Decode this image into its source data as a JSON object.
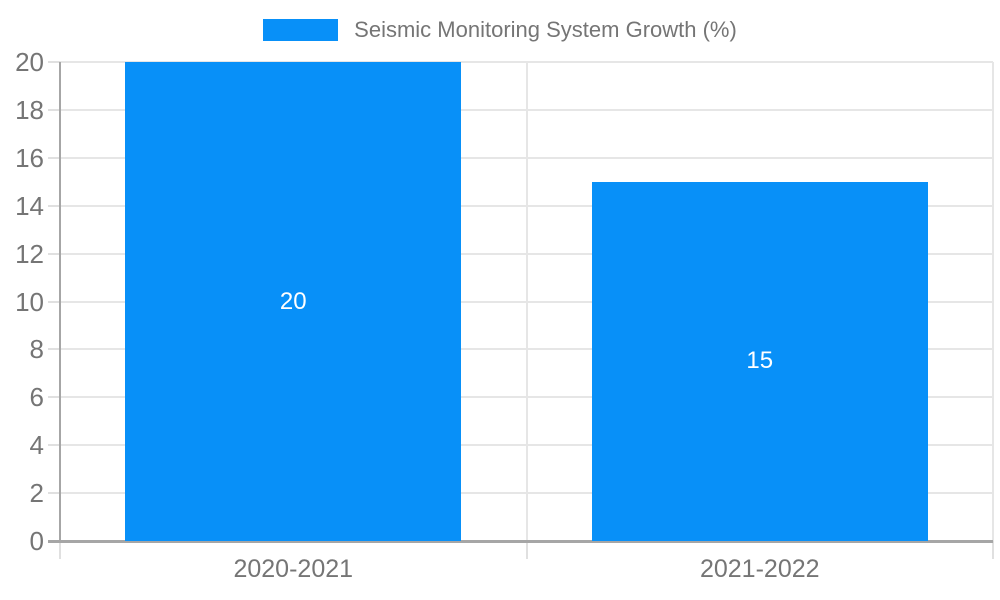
{
  "chart_data": {
    "type": "bar",
    "title": "Seismic Monitoring System Growth (%)",
    "categories": [
      "2020-2021",
      "2021-2022"
    ],
    "series": [
      {
        "name": "Seismic Monitoring System Growth (%)",
        "values": [
          20,
          15
        ]
      }
    ],
    "data_labels": [
      "20",
      "15"
    ],
    "xlabel": "",
    "ylabel": "",
    "ylim": [
      0,
      20
    ],
    "yticks": [
      0,
      2,
      4,
      6,
      8,
      10,
      12,
      14,
      16,
      18,
      20
    ],
    "grid": true,
    "legend_position": "top-center",
    "colors": {
      "bar": "#0890F8",
      "bar_label": "#ffffff",
      "axis": "#a6a6a6",
      "grid": "#e6e6e6",
      "tick": "#e0e0e0",
      "text": "#757575"
    }
  }
}
